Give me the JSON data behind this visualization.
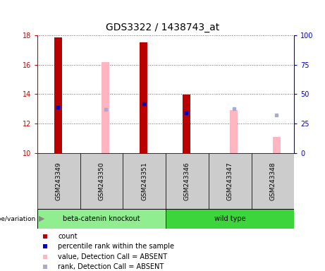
{
  "title": "GDS3322 / 1438743_at",
  "samples": [
    "GSM243349",
    "GSM243350",
    "GSM243351",
    "GSM243346",
    "GSM243347",
    "GSM243348"
  ],
  "groups": [
    "beta-catenin knockout",
    "beta-catenin knockout",
    "beta-catenin knockout",
    "wild type",
    "wild type",
    "wild type"
  ],
  "group_labels": [
    "beta-catenin knockout",
    "wild type"
  ],
  "group_colors": [
    "#90EE90",
    "#3CD63C"
  ],
  "ylim_left": [
    10,
    18
  ],
  "ylim_right": [
    0,
    100
  ],
  "yticks_left": [
    10,
    12,
    14,
    16,
    18
  ],
  "yticks_right": [
    0,
    25,
    50,
    75,
    100
  ],
  "left_color": "#CC0000",
  "right_axis_color": "#0000CC",
  "count_bars": {
    "GSM243349": [
      10,
      17.85
    ],
    "GSM243350": [
      10,
      10
    ],
    "GSM243351": [
      10,
      17.5
    ],
    "GSM243346": [
      10,
      13.95
    ],
    "GSM243347": [
      10,
      10
    ],
    "GSM243348": [
      10,
      10
    ]
  },
  "absent_value_bars": {
    "GSM243349": null,
    "GSM243350": [
      10,
      16.2
    ],
    "GSM243351": null,
    "GSM243346": null,
    "GSM243347": [
      10,
      12.9
    ],
    "GSM243348": [
      10,
      11.1
    ]
  },
  "percentile_rank_markers": {
    "GSM243349": 13.1,
    "GSM243350": null,
    "GSM243351": 13.35,
    "GSM243346": 12.75,
    "GSM243347": null,
    "GSM243348": null
  },
  "absent_rank_markers": {
    "GSM243349": null,
    "GSM243350": 12.95,
    "GSM243351": null,
    "GSM243346": null,
    "GSM243347": 13.0,
    "GSM243348": 12.6
  },
  "count_bar_color": "#BB0000",
  "absent_value_bar_color": "#FFB6C1",
  "percentile_rank_color": "#0000BB",
  "absent_rank_color": "#AAAACC",
  "bg_plot_color": "#FFFFFF",
  "bg_label_color": "#CCCCCC",
  "genotype_label": "genotype/variation",
  "legend_items": [
    {
      "label": "count",
      "color": "#BB0000"
    },
    {
      "label": "percentile rank within the sample",
      "color": "#0000BB"
    },
    {
      "label": "value, Detection Call = ABSENT",
      "color": "#FFB6C1"
    },
    {
      "label": "rank, Detection Call = ABSENT",
      "color": "#AAAACC"
    }
  ]
}
